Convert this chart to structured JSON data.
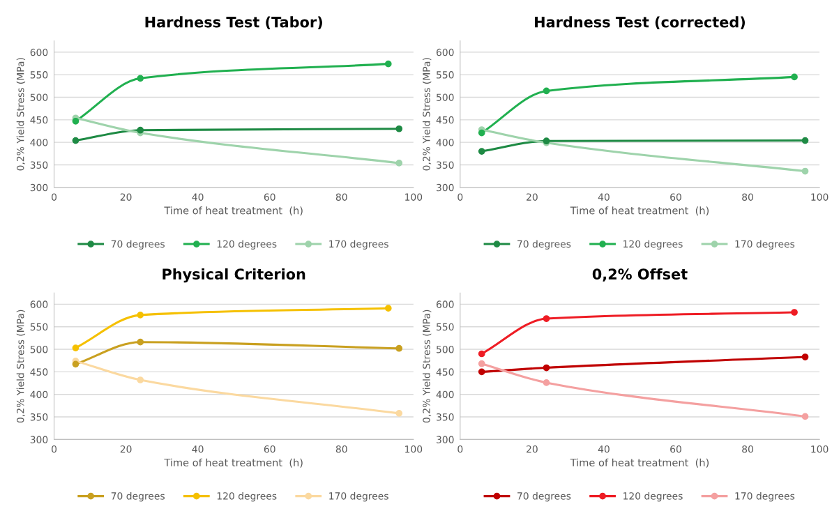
{
  "chart_data": [
    {
      "type": "line",
      "title": "Hardness Test (Tabor)",
      "xlabel": "Time of heat treatment  (h)",
      "ylabel": "0,2% Yield Stress (MPa)",
      "xlim": [
        0,
        100
      ],
      "ylim": [
        300,
        625
      ],
      "xticks": [
        0,
        20,
        40,
        60,
        80,
        100
      ],
      "yticks": [
        300,
        350,
        400,
        450,
        500,
        550,
        600
      ],
      "grid": "y",
      "legend": "bottom",
      "marker": "circle",
      "line_style": "solid",
      "series": [
        {
          "name": "70 degrees",
          "color": "#1e8a44",
          "x": [
            6,
            24,
            96
          ],
          "values": [
            404,
            427,
            430
          ]
        },
        {
          "name": "120 degrees",
          "color": "#21b050",
          "x": [
            6,
            24,
            93
          ],
          "values": [
            447,
            542,
            574
          ]
        },
        {
          "name": "170 degrees",
          "color": "#9ed3ab",
          "x": [
            6,
            24,
            96
          ],
          "values": [
            454,
            421,
            354
          ]
        }
      ]
    },
    {
      "type": "line",
      "title": "Hardness Test (corrected)",
      "xlabel": "Time of heat treatment  (h)",
      "ylabel": "0,2% Yield Stress (MPa)",
      "xlim": [
        0,
        100
      ],
      "ylim": [
        300,
        625
      ],
      "xticks": [
        0,
        20,
        40,
        60,
        80,
        100
      ],
      "yticks": [
        300,
        350,
        400,
        450,
        500,
        550,
        600
      ],
      "grid": "y",
      "legend": "bottom",
      "marker": "circle",
      "line_style": "solid",
      "series": [
        {
          "name": "70 degrees",
          "color": "#1e8a44",
          "x": [
            6,
            24,
            96
          ],
          "values": [
            380,
            403,
            404
          ]
        },
        {
          "name": "120 degrees",
          "color": "#21b050",
          "x": [
            6,
            24,
            93
          ],
          "values": [
            421,
            514,
            545
          ]
        },
        {
          "name": "170 degrees",
          "color": "#9ed3ab",
          "x": [
            6,
            24,
            96
          ],
          "values": [
            428,
            399,
            336
          ]
        }
      ]
    },
    {
      "type": "line",
      "title": "Physical Criterion",
      "xlabel": "Time of heat treatment  (h)",
      "ylabel": "0,2% Yield Stress (MPa)",
      "xlim": [
        0,
        100
      ],
      "ylim": [
        300,
        625
      ],
      "xticks": [
        0,
        20,
        40,
        60,
        80,
        100
      ],
      "yticks": [
        300,
        350,
        400,
        450,
        500,
        550,
        600
      ],
      "grid": "y",
      "legend": "bottom",
      "marker": "circle",
      "line_style": "solid",
      "series": [
        {
          "name": "70 degrees",
          "color": "#c9a020",
          "x": [
            6,
            24,
            96
          ],
          "values": [
            467,
            516,
            502
          ]
        },
        {
          "name": "120 degrees",
          "color": "#f5c000",
          "x": [
            6,
            24,
            93
          ],
          "values": [
            503,
            576,
            591
          ]
        },
        {
          "name": "170 degrees",
          "color": "#fbd9a0",
          "x": [
            6,
            24,
            96
          ],
          "values": [
            474,
            432,
            358
          ]
        }
      ]
    },
    {
      "type": "line",
      "title": "0,2% Offset",
      "xlabel": "Time of heat treatment  (h)",
      "ylabel": "0,2% Yield Stress (MPa)",
      "xlim": [
        0,
        100
      ],
      "ylim": [
        300,
        625
      ],
      "xticks": [
        0,
        20,
        40,
        60,
        80,
        100
      ],
      "yticks": [
        300,
        350,
        400,
        450,
        500,
        550,
        600
      ],
      "grid": "y",
      "legend": "bottom",
      "marker": "circle",
      "line_style": "solid",
      "series": [
        {
          "name": "70 degrees",
          "color": "#c00000",
          "x": [
            6,
            24,
            96
          ],
          "values": [
            450,
            459,
            483
          ]
        },
        {
          "name": "120 degrees",
          "color": "#ee1c24",
          "x": [
            6,
            24,
            93
          ],
          "values": [
            490,
            568,
            582
          ]
        },
        {
          "name": "170 degrees",
          "color": "#f4a0a0",
          "x": [
            6,
            24,
            96
          ],
          "values": [
            468,
            426,
            351
          ]
        }
      ]
    }
  ]
}
